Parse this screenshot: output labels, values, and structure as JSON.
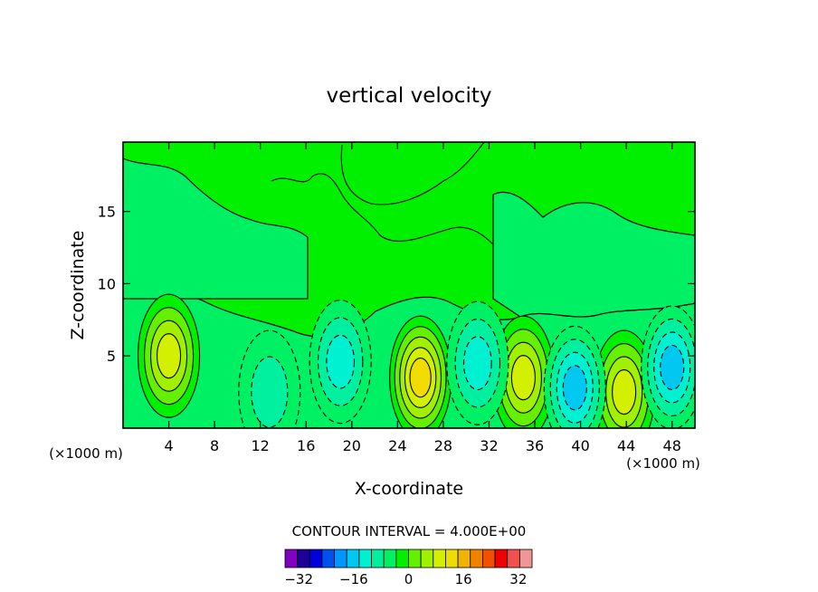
{
  "chart_data": {
    "type": "heatmap",
    "title": "vertical velocity",
    "xlabel": "X-coordinate",
    "ylabel": "Z-coordinate",
    "x_unit_left": "(×1000 m)",
    "x_unit_right": "(×1000 m)",
    "xlim": [
      0,
      50
    ],
    "ylim": [
      0,
      19.8
    ],
    "x_ticks": [
      "4",
      "8",
      "12",
      "16",
      "20",
      "24",
      "28",
      "32",
      "36",
      "40",
      "44",
      "48"
    ],
    "y_ticks": [
      "5",
      "10",
      "15"
    ],
    "contour_interval_label": "CONTOUR INTERVAL = 4.000E+00",
    "colorbar": {
      "min": -36,
      "max": 36,
      "step": 4,
      "tick_labels": [
        "-32",
        "-16",
        "0",
        "16",
        "32"
      ],
      "colors": [
        "#7f00bf",
        "#1e0096",
        "#0000dc",
        "#0050f0",
        "#0096ff",
        "#00c8f0",
        "#00f0d2",
        "#00f0a0",
        "#00f064",
        "#00f000",
        "#64f000",
        "#a0f000",
        "#d2f000",
        "#f0dc00",
        "#f0b400",
        "#f08200",
        "#f05000",
        "#f00000",
        "#f05050",
        "#f09696"
      ]
    },
    "features": [
      {
        "x": 4.0,
        "z": 5.0,
        "value": 10
      },
      {
        "x": 26.0,
        "z": 3.5,
        "value": 16
      },
      {
        "x": 35.0,
        "z": 3.5,
        "value": 12
      },
      {
        "x": 43.8,
        "z": 2.5,
        "value": 12
      },
      {
        "x": 31.0,
        "z": 4.5,
        "value": -8
      },
      {
        "x": 39.5,
        "z": 2.8,
        "value": -10
      },
      {
        "x": 48.0,
        "z": 4.2,
        "value": -10
      },
      {
        "x": 19.0,
        "z": 4.6,
        "value": -6
      },
      {
        "x": 12.8,
        "z": 2.5,
        "value": -4
      }
    ]
  }
}
